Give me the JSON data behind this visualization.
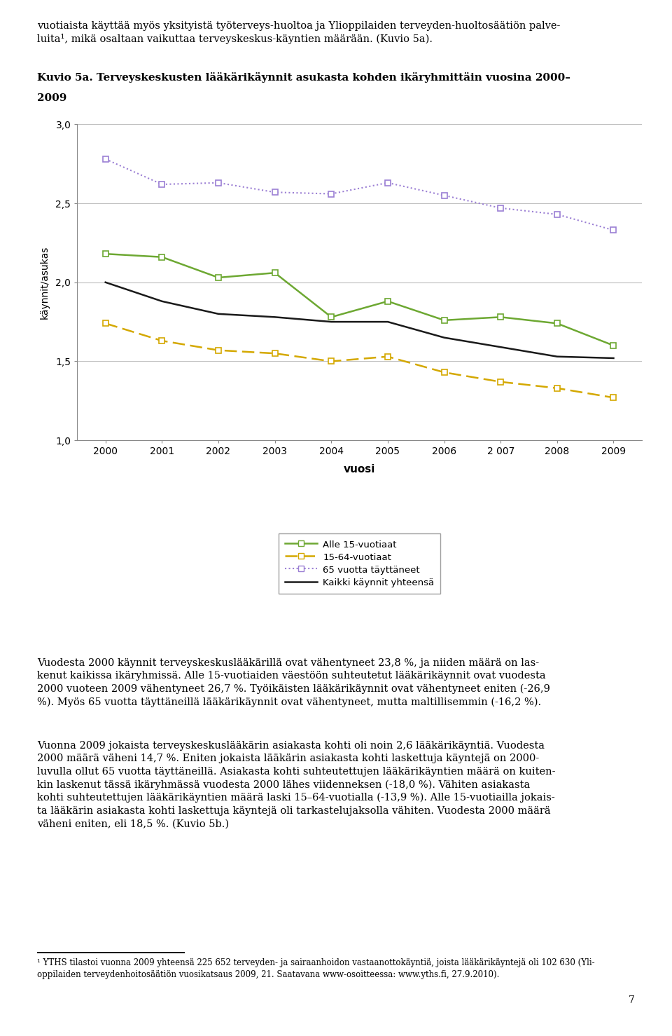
{
  "title_line1": "Kuvio 5a. Terveyskeskusten lääkärikäynnit asukasta kohden ikäryhmittäin vuosina 2000–",
  "title_line2": "2009",
  "ylabel": "käynnit/asukas",
  "xlabel": "vuosi",
  "years": [
    2000,
    2001,
    2002,
    2003,
    2004,
    2005,
    2006,
    2007,
    2008,
    2009
  ],
  "year_labels": [
    "2000",
    "2001",
    "2002",
    "2003",
    "2004",
    "2005",
    "2006",
    "2 007",
    "2008",
    "2009"
  ],
  "alle15": [
    2.18,
    2.16,
    2.03,
    2.06,
    1.78,
    1.88,
    1.76,
    1.78,
    1.74,
    1.6
  ],
  "age1564": [
    1.74,
    1.63,
    1.57,
    1.55,
    1.5,
    1.53,
    1.43,
    1.37,
    1.33,
    1.27
  ],
  "age65": [
    2.78,
    2.62,
    2.63,
    2.57,
    2.56,
    2.63,
    2.55,
    2.47,
    2.43,
    2.33
  ],
  "kaikki": [
    2.0,
    1.88,
    1.8,
    1.78,
    1.75,
    1.75,
    1.65,
    1.59,
    1.53,
    1.52
  ],
  "color_alle15": "#6da832",
  "color_1564": "#d4a800",
  "color_65": "#9b7fd4",
  "color_kaikki": "#1a1a1a",
  "ylim": [
    1.0,
    3.0
  ],
  "yticks": [
    1.0,
    1.5,
    2.0,
    2.5,
    3.0
  ],
  "legend_alle15": "Alle 15-vuotiaat",
  "legend_1564": "15-64-vuotiaat",
  "legend_65": "65 vuotta täyttäneet",
  "legend_kaikki": "Kaikki käynnit yhteensä",
  "top_text": "vuotiaista käyttää myös yksityistä työterveys­huoltoa ja Ylioppilaiden terveyden­huoltosäätiön palve-\nluita¹, mikä osaltaan vaikuttaa terveyskeskus­käyntien määrään. (Kuvio 5a).",
  "body_text1": "Vuodesta 2000 käynnit terveyskeskuslääkärillä ovat vähentyneet 23,8 %, ja niiden määrä on las-\nkenut kaikissa ikäryhmissä. Alle 15-vuotiaiden väestöön suhteutetut lääkärikäynnit ovat vuodesta\n2000 vuoteen 2009 vähentyneet 26,7 %. Työikäisten lääkärikäynnit ovat vähentyneet eniten (-26,9\n%). Myös 65 vuotta täyttäneillä lääkärikäynnit ovat vähentyneet, mutta maltillisemmin (-16,2 %).",
  "body_text2": "Vuonna 2009 jokaista terveyskeskuslääkärin asiakasta kohti oli noin 2,6 lääkärikäyntiä. Vuodesta\n2000 määrä väheni 14,7 %. Eniten jokaista lääkärin asiakasta kohti laskettuja käyntejä on 2000-\nluvulla ollut 65 vuotta täyttäneillä. Asiakasta kohti suhteutettujen lääkärikäyntien määrä on kuiten-\nkin laskenut tässä ikäryhmässä vuodesta 2000 lähes viidenneksen (-18,0 %). Vähiten asiakasta\nkohti suhteutettujen lääkärikäyntien määrä laski 15–64-vuotialla (-13,9 %). Alle 15-vuotiailla jokais-\nta lääkärin asiakasta kohti laskettuja käyntejä oli tarkastelujaksolla vähiten. Vuodesta 2000 määrä\nväheni eniten, eli 18,5 %. (Kuvio 5b.)",
  "footnote_line": "¹ YTHS tilastoi vuonna 2009 yhteensä 225 652 terveyden- ja sairaanhoidon vastaanottokäyntiä, joista lääkärikäyntejä oli 102 630 (Yli-\noppilaiden terveydenhoitosäätiön vuosikatsaus 2009, 21. Saatavana www-osoitteessa: www.yths.fi, 27.9.2010).",
  "page_number": "7"
}
